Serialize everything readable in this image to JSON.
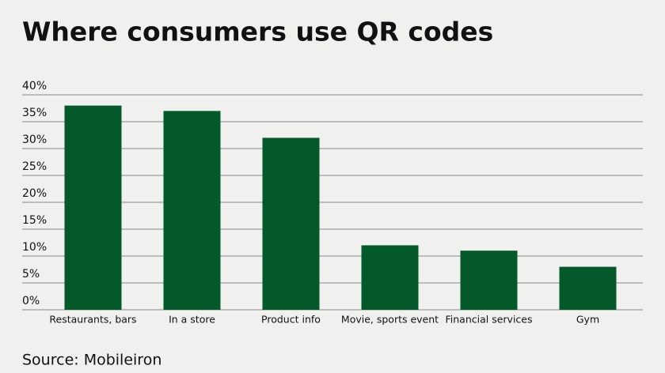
{
  "chart_data": {
    "type": "bar",
    "title": "Where consumers use QR codes",
    "categories": [
      "Restaurants, bars",
      "In a store",
      "Product info",
      "Movie, sports event",
      "Financial services",
      "Gym"
    ],
    "values": [
      38,
      37,
      32,
      12,
      11,
      8
    ],
    "color": "#04592b",
    "ylim": [
      0,
      40
    ],
    "yticks": [
      {
        "value": 0,
        "label": "0%"
      },
      {
        "value": 5,
        "label": "5%"
      },
      {
        "value": 10,
        "label": "10%"
      },
      {
        "value": 15,
        "label": "15%"
      },
      {
        "value": 20,
        "label": "20%"
      },
      {
        "value": 25,
        "label": "25%"
      },
      {
        "value": 30,
        "label": "30%"
      },
      {
        "value": 35,
        "label": "35%"
      },
      {
        "value": 40,
        "label": "40%"
      }
    ],
    "grid": true,
    "source": "Source: Mobileiron"
  }
}
